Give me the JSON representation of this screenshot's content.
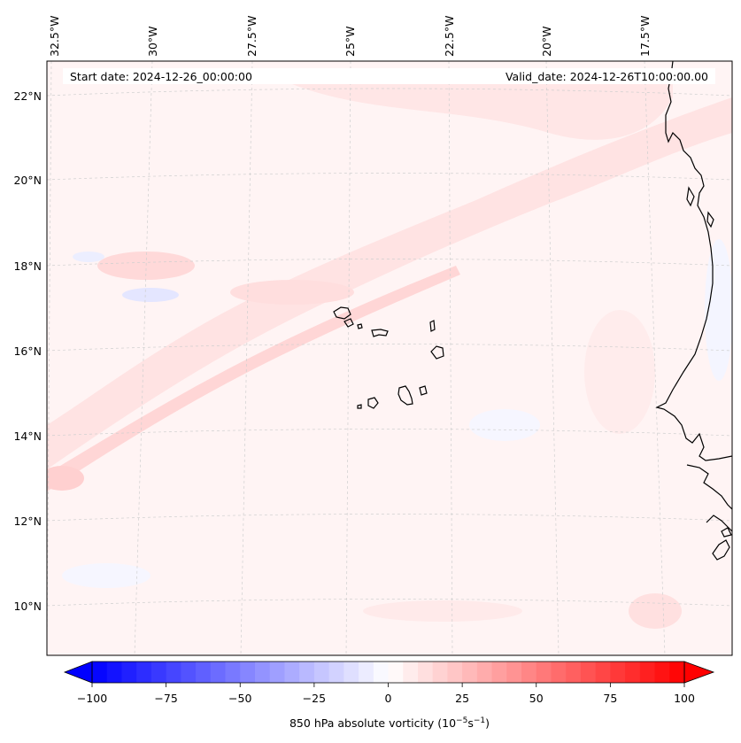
{
  "info": {
    "start_date": "Start date: 2024-12-26_00:00:00",
    "valid_date": "Valid_date: 2024-12-26T10:00:00.00"
  },
  "longitude_labels": [
    "32.5°W",
    "30°W",
    "27.5°W",
    "25°W",
    "22.5°W",
    "20°W",
    "17.5°W"
  ],
  "latitude_labels": [
    "22°N",
    "20°N",
    "18°N",
    "16°N",
    "14°N",
    "12°N",
    "10°N"
  ],
  "colorbar": {
    "label": "850 hPa absolute vorticity (10",
    "label_exp1": "−5",
    "label_mid": "s",
    "label_exp2": "−1",
    "label_end": ")",
    "min": -100,
    "max": 100,
    "ticks": [
      -100,
      -75,
      -50,
      -25,
      0,
      25,
      50,
      75,
      100
    ],
    "tick_labels": [
      "−100",
      "−75",
      "−50",
      "−25",
      "0",
      "25",
      "50",
      "75",
      "100"
    ],
    "colormap": "bwr",
    "low_color": "#0000ff",
    "mid_color": "#ffffff",
    "high_color": "#ff0000"
  },
  "colors": {
    "field_base": "#fff3f3",
    "positive_tint": "#ffe0e0",
    "negative_tint": "#eef0ff",
    "coastline": "#000000",
    "gridline": "#c8c8c8"
  }
}
